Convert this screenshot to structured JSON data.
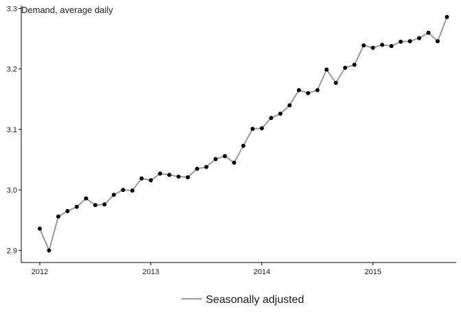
{
  "chart_data": {
    "type": "line",
    "title": "Demand, average daily",
    "xlabel": "",
    "ylabel": "",
    "x_ticks": [
      "2012",
      "2013",
      "2014",
      "2015"
    ],
    "y_ticks": [
      "2.9",
      "3.0",
      "3.1",
      "3.2",
      "3.3"
    ],
    "xlim": [
      "2011-11",
      "2015-10"
    ],
    "ylim": [
      2.88,
      3.305
    ],
    "grid": false,
    "legend_position": "bottom",
    "line_color": "#999999",
    "point_color": "#000000",
    "series": [
      {
        "name": "Seasonally adjusted",
        "x": [
          "2012-01",
          "2012-02",
          "2012-03",
          "2012-04",
          "2012-05",
          "2012-06",
          "2012-07",
          "2012-08",
          "2012-09",
          "2012-10",
          "2012-11",
          "2012-12",
          "2013-01",
          "2013-02",
          "2013-03",
          "2013-04",
          "2013-05",
          "2013-06",
          "2013-07",
          "2013-08",
          "2013-09",
          "2013-10",
          "2013-11",
          "2013-12",
          "2014-01",
          "2014-02",
          "2014-03",
          "2014-04",
          "2014-05",
          "2014-06",
          "2014-07",
          "2014-08",
          "2014-09",
          "2014-10",
          "2014-11",
          "2014-12",
          "2015-01",
          "2015-02",
          "2015-03",
          "2015-04",
          "2015-05",
          "2015-06",
          "2015-07",
          "2015-08",
          "2015-09"
        ],
        "values": [
          2.936,
          2.9,
          2.956,
          2.965,
          2.972,
          2.986,
          2.975,
          2.976,
          2.992,
          3.0,
          2.999,
          3.019,
          3.016,
          3.027,
          3.025,
          3.022,
          3.021,
          3.035,
          3.038,
          3.051,
          3.056,
          3.045,
          3.073,
          3.101,
          3.102,
          3.119,
          3.126,
          3.14,
          3.165,
          3.16,
          3.165,
          3.199,
          3.177,
          3.202,
          3.207,
          3.239,
          3.235,
          3.24,
          3.238,
          3.245,
          3.246,
          3.251,
          3.26,
          3.246,
          3.286
        ]
      }
    ]
  }
}
